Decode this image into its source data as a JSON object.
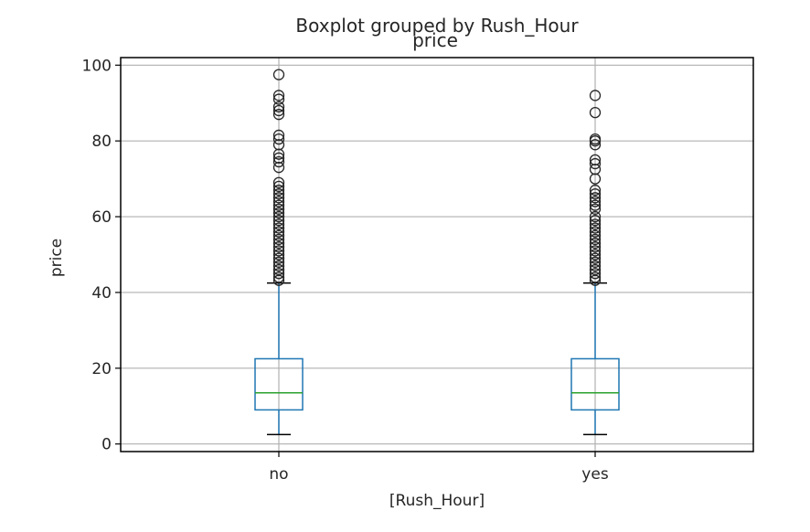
{
  "chart_data": {
    "type": "boxplot",
    "title": "Boxplot grouped by Rush_Hour",
    "subtitle": "price",
    "xlabel": "[Rush_Hour]",
    "ylabel": "price",
    "ylim": [
      -2,
      102
    ],
    "yticks": [
      0,
      20,
      40,
      60,
      80,
      100
    ],
    "ytick_labels": [
      "0",
      "20",
      "40",
      "60",
      "80",
      "100"
    ],
    "grid": true,
    "colors": {
      "box": "#1f77b4",
      "median": "#2ca02c",
      "grid": "#b0b0b0",
      "outlier": "#262626"
    },
    "categories": [
      "no",
      "yes"
    ],
    "boxes": [
      {
        "name": "no",
        "whislo": 2.5,
        "q1": 9.0,
        "med": 13.5,
        "q3": 22.5,
        "whishi": 42.5,
        "fliers": [
          43.2,
          44,
          45,
          46,
          47,
          48,
          49,
          50,
          51,
          52,
          53,
          54,
          55,
          56,
          57,
          58,
          59,
          60,
          61,
          62,
          63,
          64,
          65,
          66,
          67,
          68,
          69,
          73,
          74.5,
          75.5,
          76.5,
          79,
          80.5,
          81.5,
          87,
          88,
          89,
          91,
          92,
          97.5
        ]
      },
      {
        "name": "yes",
        "whislo": 2.5,
        "q1": 9.0,
        "med": 13.5,
        "q3": 22.5,
        "whishi": 42.5,
        "fliers": [
          43.2,
          44,
          45,
          46,
          47,
          48,
          49,
          50,
          51,
          52,
          53,
          54,
          55,
          56,
          57,
          58,
          59,
          60,
          62,
          63,
          64,
          65,
          66,
          67,
          70,
          72.5,
          74,
          75,
          79,
          80,
          80.5,
          87.5,
          92
        ]
      }
    ]
  }
}
